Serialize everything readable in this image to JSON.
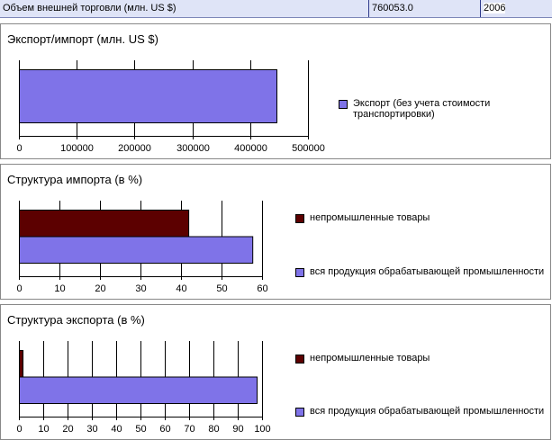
{
  "header": {
    "label": "Объем внешней торговли (млн. US $)",
    "value": "760053.0",
    "year": "2006"
  },
  "chart_data": [
    {
      "type": "bar",
      "title": "Экспорт/импорт (млн. US $)",
      "xlim": [
        0,
        500000
      ],
      "ticks": [
        "0",
        "100000",
        "200000",
        "300000",
        "400000",
        "500000"
      ],
      "tick_values": [
        0,
        100000,
        200000,
        300000,
        400000,
        500000
      ],
      "series": [
        {
          "name": "Экспорт (без учета стоимости транспортировки)",
          "value": 445500,
          "color": "#7f73e8"
        }
      ],
      "legend": "right"
    },
    {
      "type": "bar",
      "title": "Структура импорта (в %)",
      "xlim": [
        0,
        60
      ],
      "ticks": [
        "0",
        "10",
        "20",
        "30",
        "40",
        "50",
        "60"
      ],
      "tick_values": [
        0,
        10,
        20,
        30,
        40,
        50,
        60
      ],
      "series": [
        {
          "name": "непромышленные товары",
          "value": 41.8,
          "color": "#5c0000"
        },
        {
          "name": "вся продукция обрабатывающей промышленности",
          "value": 57.6,
          "color": "#7f73e8"
        }
      ],
      "legend": "right"
    },
    {
      "type": "bar",
      "title": "Структура экспорта (в %)",
      "xlim": [
        0,
        100
      ],
      "ticks": [
        "0",
        "10",
        "20",
        "30",
        "40",
        "50",
        "60",
        "70",
        "80",
        "90",
        "100"
      ],
      "tick_values": [
        0,
        10,
        20,
        30,
        40,
        50,
        60,
        70,
        80,
        90,
        100
      ],
      "series": [
        {
          "name": "непромышленные товары",
          "value": 1.5,
          "color": "#5c0000"
        },
        {
          "name": "вся продукция обрабатывающей промышленности",
          "value": 97.8,
          "color": "#7f73e8"
        }
      ],
      "legend": "right"
    }
  ]
}
